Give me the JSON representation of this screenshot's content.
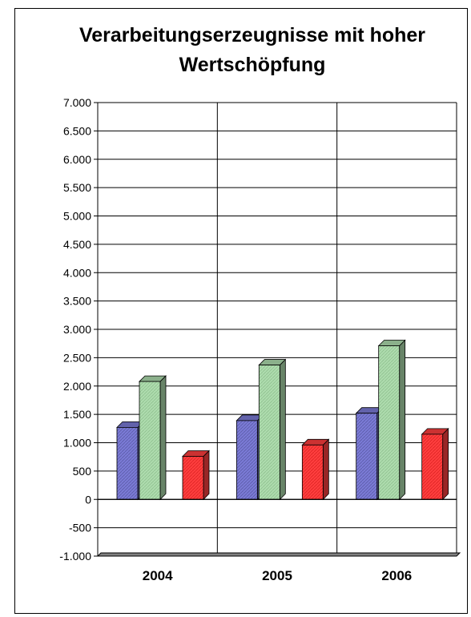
{
  "chart_data": {
    "type": "bar",
    "title": "Verarbeitungserzeugnisse mit hoher Wertschöpfung",
    "categories": [
      "2004",
      "2005",
      "2006"
    ],
    "series": [
      {
        "values": [
          1270,
          1390,
          1520
        ],
        "color": "#7b7bd6"
      },
      {
        "values": [
          2080,
          2370,
          2710
        ],
        "color": "#aedcae"
      },
      {
        "values": [
          760,
          960,
          1150
        ],
        "color": "#ff3f3f"
      }
    ],
    "ylim": [
      -1000,
      7000
    ],
    "yticks": [
      -1000,
      -500,
      0,
      500,
      1000,
      1500,
      2000,
      2500,
      3000,
      3500,
      4000,
      4500,
      5000,
      5500,
      6000,
      6500,
      7000
    ],
    "ytick_labels": [
      "-1.000",
      "-500",
      "0",
      "500",
      "1.000",
      "1.500",
      "2.000",
      "2.500",
      "3.000",
      "3.500",
      "4.000",
      "4.500",
      "5.000",
      "5.500",
      "6.000",
      "6.500",
      "7.000"
    ],
    "grid": true,
    "legend": "none",
    "style": "3d-columns"
  }
}
